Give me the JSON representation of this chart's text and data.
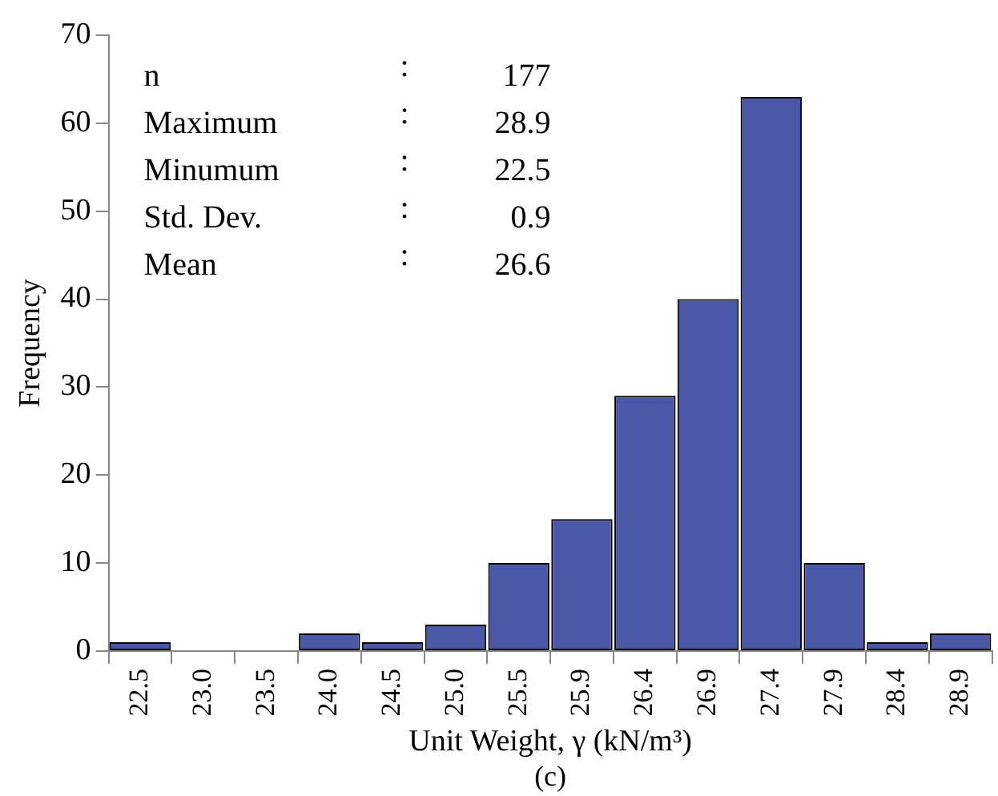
{
  "chart_data": {
    "type": "bar",
    "xlabel": "Unit Weight, γ (kN/m³)",
    "ylabel": "Frequency",
    "categories": [
      "22.5",
      "23.0",
      "23.5",
      "24.0",
      "24.5",
      "25.0",
      "25.5",
      "25.9",
      "26.4",
      "26.9",
      "27.4",
      "27.9",
      "28.4",
      "28.9"
    ],
    "values": [
      1,
      0,
      0,
      2,
      1,
      3,
      10,
      15,
      29,
      40,
      63,
      10,
      1,
      2
    ],
    "color": "#4b58a8",
    "ylim": [
      0,
      70
    ],
    "yticks": [
      0,
      10,
      20,
      30,
      40,
      50,
      60,
      70
    ],
    "grid": false,
    "legend": false,
    "annotations": [
      "n : 177",
      "Maximum : 28.9",
      "Minumum : 22.5",
      "Std. Dev. : 0.9",
      "Mean : 26.6",
      "(c)"
    ]
  }
}
